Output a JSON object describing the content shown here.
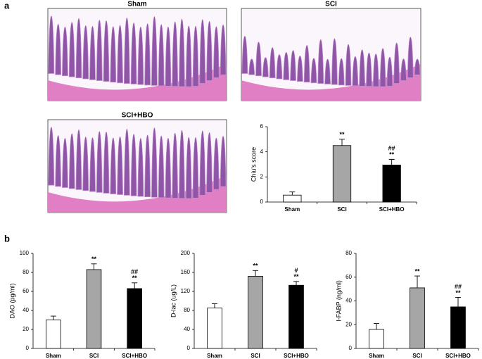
{
  "panels": [
    "a",
    "b"
  ],
  "images": [
    {
      "caption": "Sham"
    },
    {
      "caption": "SCI"
    },
    {
      "caption": "SCI+HBO"
    }
  ],
  "chart_data": [
    {
      "type": "bar",
      "ylabel": "Chiu's score",
      "categories": [
        "Sham",
        "SCI",
        "SCI+HBO"
      ],
      "values": [
        0.55,
        4.5,
        2.95
      ],
      "errors": [
        0.25,
        0.5,
        0.45
      ],
      "colors": [
        "#ffffff",
        "#a6a6a6",
        "#000000"
      ],
      "ylim": [
        0,
        6
      ],
      "yticks": [
        0,
        2,
        4,
        6
      ],
      "significance": [
        [],
        [
          "**"
        ],
        [
          "##",
          "**"
        ]
      ]
    },
    {
      "type": "bar",
      "ylabel": "DAO (pg/ml)",
      "categories": [
        "Sham",
        "SCI",
        "SCI+HBO"
      ],
      "values": [
        30,
        83,
        63
      ],
      "errors": [
        4,
        6,
        6
      ],
      "colors": [
        "#ffffff",
        "#a6a6a6",
        "#000000"
      ],
      "ylim": [
        0,
        100
      ],
      "yticks": [
        0,
        20,
        40,
        60,
        80,
        100
      ],
      "significance": [
        [],
        [
          "**"
        ],
        [
          "##",
          "**"
        ]
      ]
    },
    {
      "type": "bar",
      "ylabel": "D-lac (ug/L)",
      "categories": [
        "Sham",
        "SCI",
        "SCI+HBO"
      ],
      "values": [
        85,
        152,
        133
      ],
      "errors": [
        9,
        12,
        8
      ],
      "colors": [
        "#ffffff",
        "#a6a6a6",
        "#000000"
      ],
      "ylim": [
        0,
        200
      ],
      "yticks": [
        0,
        40,
        80,
        120,
        160,
        200
      ],
      "significance": [
        [],
        [
          "**"
        ],
        [
          "#",
          "**"
        ]
      ]
    },
    {
      "type": "bar",
      "ylabel": "I-FABP (ng/ml)",
      "categories": [
        "Sham",
        "SCI",
        "SCI+HBO"
      ],
      "values": [
        16,
        51,
        35
      ],
      "errors": [
        5,
        10,
        8
      ],
      "colors": [
        "#ffffff",
        "#a6a6a6",
        "#000000"
      ],
      "ylim": [
        0,
        80
      ],
      "yticks": [
        0,
        20,
        40,
        60,
        80
      ],
      "significance": [
        [],
        [
          "**"
        ],
        [
          "##",
          "**"
        ]
      ]
    }
  ]
}
